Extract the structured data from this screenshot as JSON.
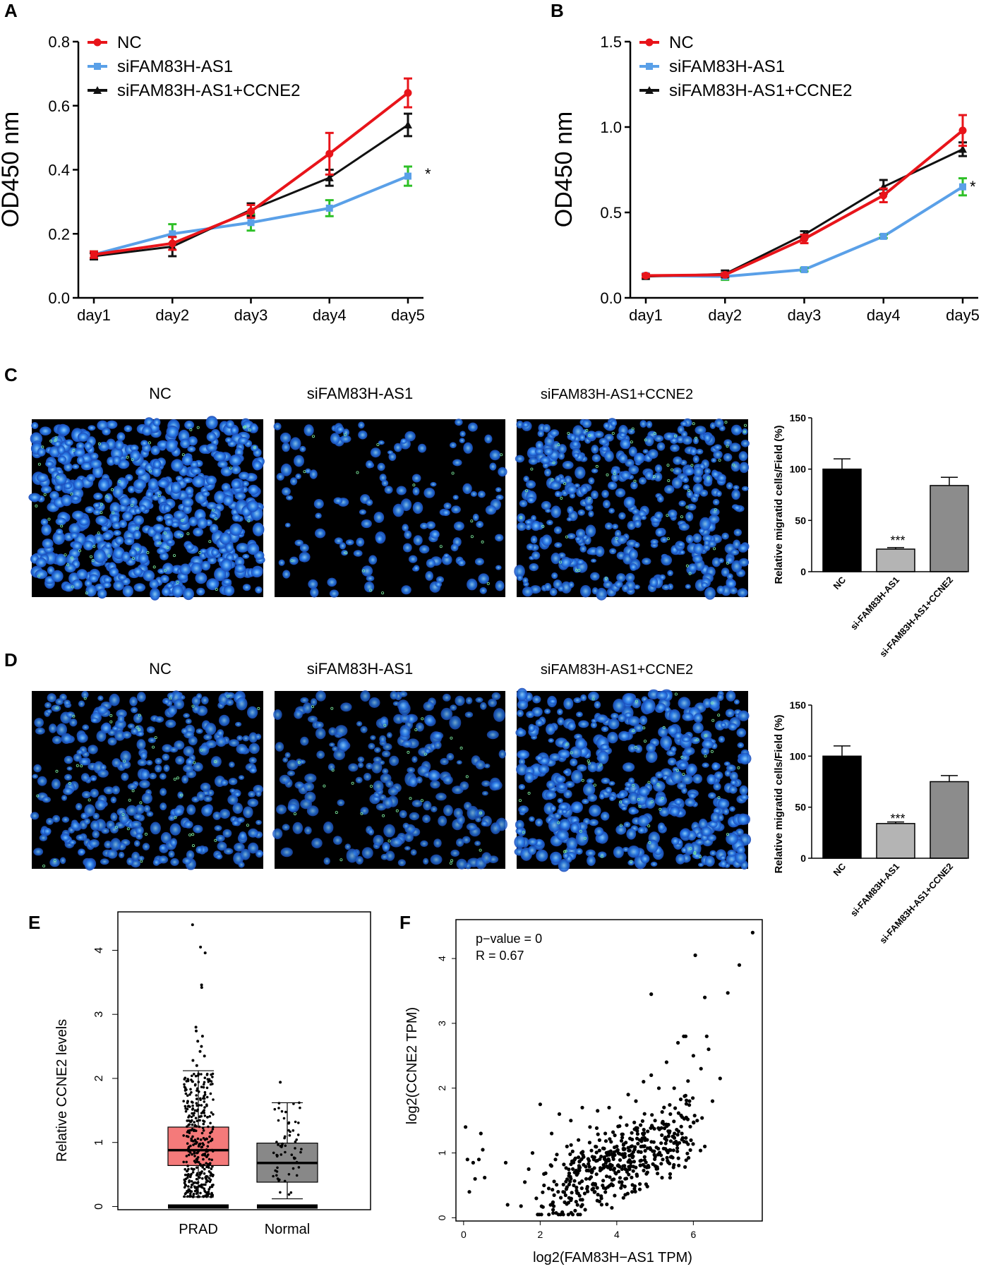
{
  "panel_labels": [
    "A",
    "B",
    "C",
    "D",
    "E",
    "F"
  ],
  "colors": {
    "nc": "#e8141a",
    "si": "#5aa0e8",
    "ccne": "#111111",
    "err_green": "#2ec027",
    "bar_nc": "#000000",
    "bar_si": "#b4b4b4",
    "bar_ccne": "#8c8c8c",
    "box_prad": "#f47a7a",
    "box_normal": "#888888",
    "cell_blue": "#2a7de8"
  },
  "chart_data": [
    {
      "id": "A",
      "type": "line",
      "ylabel": "OD450 nm",
      "categories": [
        "day1",
        "day2",
        "day3",
        "day4",
        "day5"
      ],
      "ylim": [
        0,
        0.8
      ],
      "yticks": [
        "0.0",
        "0.2",
        "0.4",
        "0.6",
        "0.8"
      ],
      "series": [
        {
          "name": "NC",
          "values": [
            0.135,
            0.17,
            0.27,
            0.45,
            0.64
          ],
          "err": [
            0.01,
            0.02,
            0.02,
            0.065,
            0.045
          ]
        },
        {
          "name": "siFAM83H-AS1",
          "values": [
            0.135,
            0.2,
            0.235,
            0.28,
            0.38
          ],
          "err": [
            0.01,
            0.03,
            0.025,
            0.025,
            0.03
          ]
        },
        {
          "name": "siFAM83H-AS1+CCNE2",
          "values": [
            0.13,
            0.16,
            0.275,
            0.375,
            0.54
          ],
          "err": [
            0.01,
            0.03,
            0.02,
            0.025,
            0.035
          ]
        }
      ],
      "annotation": "*"
    },
    {
      "id": "B",
      "type": "line",
      "ylabel": "OD450 nm",
      "categories": [
        "day1",
        "day2",
        "day3",
        "day4",
        "day5"
      ],
      "ylim": [
        0,
        1.5
      ],
      "yticks": [
        "0.0",
        "0.5",
        "1.0",
        "1.5"
      ],
      "series": [
        {
          "name": "NC",
          "values": [
            0.13,
            0.135,
            0.345,
            0.6,
            0.98
          ],
          "err": [
            0.01,
            0.01,
            0.025,
            0.04,
            0.09
          ]
        },
        {
          "name": "siFAM83H-AS1",
          "values": [
            0.13,
            0.125,
            0.165,
            0.36,
            0.65
          ],
          "err": [
            0.01,
            0.02,
            0.01,
            0.01,
            0.05
          ]
        },
        {
          "name": "siFAM83H-AS1+CCNE2",
          "values": [
            0.125,
            0.14,
            0.37,
            0.65,
            0.87
          ],
          "err": [
            0.01,
            0.02,
            0.02,
            0.04,
            0.04
          ]
        }
      ],
      "annotation": "*"
    },
    {
      "id": "C",
      "type": "bar",
      "ylabel": "Relative migratid cells/Field (%)",
      "categories": [
        "NC",
        "si-FAM83H-AS1",
        "si-FAM83H-AS1+CCNE2"
      ],
      "values": [
        100,
        22,
        84
      ],
      "err": [
        10,
        1.5,
        8
      ],
      "ylim": [
        0,
        150
      ],
      "yticks": [
        "0",
        "50",
        "100",
        "150"
      ],
      "annotation": "***",
      "image_titles": [
        "NC",
        "siFAM83H-AS1",
        "siFAM83H-AS1+CCNE2"
      ]
    },
    {
      "id": "D",
      "type": "bar",
      "ylabel": "Relative migratid cells/Field (%)",
      "categories": [
        "NC",
        "si-FAM83H-AS1",
        "si-FAM83H-AS1+CCNE2"
      ],
      "values": [
        100,
        34,
        75
      ],
      "err": [
        10,
        1.5,
        6
      ],
      "ylim": [
        0,
        150
      ],
      "yticks": [
        "0",
        "50",
        "100",
        "150"
      ],
      "annotation": "***",
      "image_titles": [
        "NC",
        "siFAM83H-AS1",
        "siFAM83H-AS1+CCNE2"
      ]
    },
    {
      "id": "E",
      "type": "box",
      "ylabel": "Relative CCNE2 levels",
      "categories": [
        "PRAD",
        "Normal"
      ],
      "ylim": [
        -0.05,
        4.6
      ],
      "yticks": [
        "0",
        "1",
        "2",
        "3",
        "4"
      ],
      "boxes": [
        {
          "name": "PRAD",
          "q1": 0.64,
          "median": 0.88,
          "q3": 1.24,
          "whisker_low": 0.15,
          "whisker_high": 2.12,
          "outliers": [
            2.2,
            2.28,
            2.35,
            2.42,
            2.5,
            2.58,
            2.66,
            2.74,
            2.8,
            3.42,
            3.46,
            3.96,
            4.05,
            4.4
          ]
        },
        {
          "name": "Normal",
          "q1": 0.38,
          "median": 0.68,
          "q3": 0.99,
          "whisker_low": 0.12,
          "whisker_high": 1.62,
          "outliers": [
            1.94
          ]
        }
      ]
    },
    {
      "id": "F",
      "type": "scatter",
      "xlabel": "log2(FAM83H−AS1 TPM)",
      "ylabel": "log2(CCNE2 TPM)",
      "xlim": [
        -0.2,
        7.8
      ],
      "ylim": [
        -0.05,
        4.6
      ],
      "xticks": [
        "0",
        "2",
        "4",
        "6"
      ],
      "yticks": [
        "0",
        "1",
        "2",
        "3",
        "4"
      ],
      "stats": [
        "p−value = 0",
        "R = 0.67"
      ],
      "points": [
        [
          0.05,
          1.4
        ],
        [
          0.45,
          1.3
        ],
        [
          0.5,
          1.05
        ],
        [
          0.1,
          0.9
        ],
        [
          0.25,
          0.85
        ],
        [
          0.4,
          0.9
        ],
        [
          0.3,
          0.6
        ],
        [
          0.55,
          0.62
        ],
        [
          0.15,
          0.4
        ],
        [
          1.1,
          0.85
        ],
        [
          1.15,
          0.2
        ],
        [
          1.5,
          0.18
        ],
        [
          1.6,
          0.55
        ],
        [
          1.7,
          0.75
        ],
        [
          1.8,
          1.0
        ],
        [
          1.9,
          0.3
        ],
        [
          2.0,
          1.75
        ],
        [
          2.1,
          0.5
        ],
        [
          2.3,
          1.3
        ],
        [
          2.4,
          0.9
        ],
        [
          2.5,
          1.6
        ],
        [
          2.6,
          0.4
        ],
        [
          2.7,
          1.1
        ],
        [
          2.8,
          1.5
        ],
        [
          2.9,
          0.7
        ],
        [
          3.0,
          1.2
        ],
        [
          3.1,
          1.7
        ],
        [
          3.2,
          0.6
        ],
        [
          3.3,
          1.4
        ],
        [
          3.4,
          0.9
        ],
        [
          3.5,
          1.65
        ],
        [
          3.6,
          0.3
        ],
        [
          3.7,
          1.3
        ],
        [
          3.8,
          1.7
        ],
        [
          3.9,
          0.5
        ],
        [
          4.0,
          1.1
        ],
        [
          4.1,
          1.55
        ],
        [
          4.2,
          0.8
        ],
        [
          4.3,
          1.9
        ],
        [
          4.4,
          0.4
        ],
        [
          4.5,
          1.8
        ],
        [
          4.6,
          1.2
        ],
        [
          4.7,
          2.1
        ],
        [
          4.8,
          0.7
        ],
        [
          4.9,
          2.2
        ],
        [
          5.0,
          1.5
        ],
        [
          5.1,
          2.0
        ],
        [
          5.2,
          0.9
        ],
        [
          5.3,
          2.4
        ],
        [
          5.4,
          1.6
        ],
        [
          5.5,
          2.0
        ],
        [
          5.6,
          2.7
        ],
        [
          5.7,
          1.3
        ],
        [
          5.8,
          2.8
        ],
        [
          5.9,
          1.8
        ],
        [
          6.0,
          2.5
        ],
        [
          6.1,
          1.5
        ],
        [
          6.2,
          2.3
        ],
        [
          6.3,
          1.1
        ],
        [
          6.4,
          2.6
        ],
        [
          6.5,
          1.8
        ],
        [
          6.7,
          2.15
        ],
        [
          4.9,
          3.45
        ],
        [
          6.05,
          4.05
        ],
        [
          6.3,
          3.4
        ],
        [
          6.9,
          3.47
        ],
        [
          7.2,
          3.9
        ],
        [
          7.55,
          4.4
        ],
        [
          6.35,
          2.8
        ],
        [
          5.75,
          2.8
        ]
      ]
    }
  ]
}
